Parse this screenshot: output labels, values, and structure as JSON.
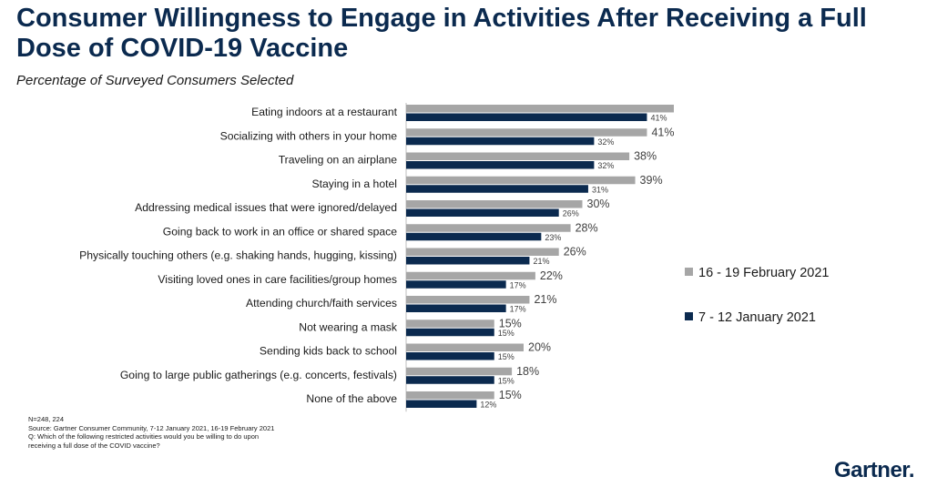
{
  "title": "Consumer Willingness to Engage in Activities After Receiving a Full Dose of COVID-19 Vaccine",
  "subtitle": "Percentage of Surveyed Consumers Selected",
  "colors": {
    "feb": "#a6a6a6",
    "jan": "#0b2a4f",
    "title": "#0b2a4f"
  },
  "legend": {
    "feb_label": "16 - 19 February 2021",
    "jan_label": "7 - 12 January 2021"
  },
  "chart_data": {
    "type": "bar",
    "orientation": "horizontal",
    "categories": [
      "Eating indoors at a restaurant",
      "Socializing with others in your home",
      "Traveling on an airplane",
      "Staying in a hotel",
      "Addressing medical issues that were ignored/delayed",
      "Going back to work in an office or shared space",
      "Physically touching others (e.g. shaking hands, hugging, kissing)",
      "Visiting loved ones in care facilities/group homes",
      "Attending church/faith services",
      "Not wearing a mask",
      "Sending kids back to school",
      "Going to large public gatherings (e.g. concerts, festivals)",
      "None of the above"
    ],
    "series": [
      {
        "name": "16 - 19 February 2021",
        "values": [
          49,
          41,
          38,
          39,
          30,
          28,
          26,
          22,
          21,
          15,
          20,
          18,
          15
        ]
      },
      {
        "name": "7 - 12 January 2021",
        "values": [
          41,
          32,
          32,
          31,
          26,
          23,
          21,
          17,
          17,
          15,
          15,
          15,
          12
        ]
      }
    ],
    "unit": "%",
    "xlim": [
      0,
      60
    ],
    "legend_position": "right",
    "grid": false
  },
  "footnote": {
    "n": "N=248, 224",
    "source": "Source: Gartner Consumer Community, 7-12 January 2021, 16-19 February 2021",
    "question_line1": "Q: Which of the following restricted activities would you be willing to do upon",
    "question_line2": "receiving a full dose of the COVID vaccine?"
  },
  "logo": {
    "text": "Gartner."
  }
}
